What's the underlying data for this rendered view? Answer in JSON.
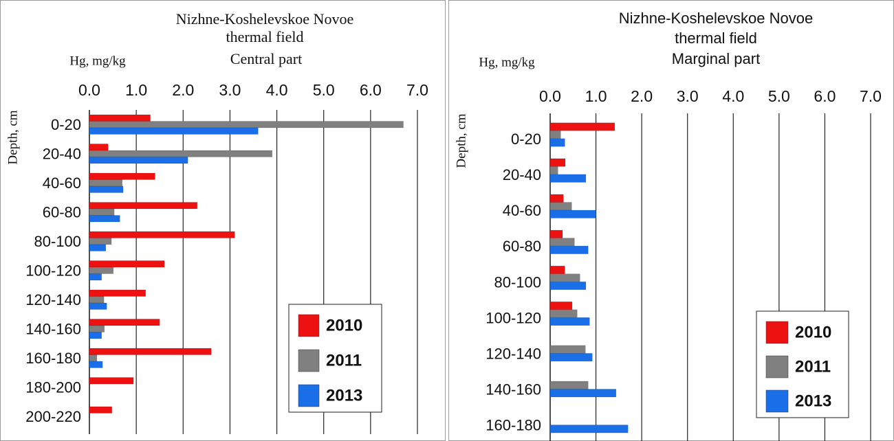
{
  "chart_data": [
    {
      "type": "bar",
      "orientation": "horizontal",
      "title": [
        "Nizhne-Koshelevskoe Novoe",
        "thermal field"
      ],
      "subtitle": "Central part",
      "x_label": "Hg, mg/kg",
      "y_label": "Depth, cm",
      "categories": [
        "0-20",
        "20-40",
        "40-60",
        "60-80",
        "80-100",
        "100-120",
        "120-140",
        "140-160",
        "160-180",
        "180-200",
        "200-220"
      ],
      "series": [
        {
          "name": "2010",
          "color": "#ee1111",
          "values": [
            1.3,
            0.4,
            1.4,
            2.3,
            3.1,
            1.6,
            1.2,
            1.5,
            2.6,
            0.94,
            0.48
          ]
        },
        {
          "name": "2011",
          "color": "#808080",
          "values": [
            6.7,
            3.9,
            0.7,
            0.53,
            0.47,
            0.51,
            0.31,
            0.32,
            0.16,
            null,
            null
          ]
        },
        {
          "name": "2013",
          "color": "#1a6fe8",
          "values": [
            3.6,
            2.1,
            0.72,
            0.65,
            0.35,
            0.26,
            0.37,
            0.26,
            0.28,
            null,
            null
          ]
        }
      ],
      "xlim": [
        0,
        7
      ],
      "xticks": [
        {
          "value": 0,
          "label": "0.0"
        },
        {
          "value": 1,
          "label": "1.0"
        },
        {
          "value": 2,
          "label": "2.0"
        },
        {
          "value": 3,
          "label": "3.0"
        },
        {
          "value": 4,
          "label": "4.0"
        },
        {
          "value": 5,
          "label": "5.0"
        },
        {
          "value": 6,
          "label": "6.0"
        },
        {
          "value": 7,
          "label": "7.0"
        }
      ],
      "grid": true,
      "legend": "lower right"
    },
    {
      "type": "bar",
      "orientation": "horizontal",
      "title": [
        "Nizhne-Koshelevskoe Novoe",
        "thermal field"
      ],
      "subtitle": "Marginal part",
      "x_label": "Hg, mg/kg",
      "y_label": "Depth, cm",
      "categories": [
        "0-20",
        "20-40",
        "40-60",
        "60-80",
        "80-100",
        "100-120",
        "120-140",
        "140-160",
        "160-180"
      ],
      "series": [
        {
          "name": "2010",
          "color": "#ee1111",
          "values": [
            1.41,
            0.33,
            0.29,
            0.27,
            0.32,
            0.48,
            null,
            null,
            null
          ]
        },
        {
          "name": "2011",
          "color": "#808080",
          "values": [
            0.23,
            0.17,
            0.47,
            0.53,
            0.65,
            0.59,
            0.77,
            0.83,
            null
          ]
        },
        {
          "name": "2013",
          "color": "#1a6fe8",
          "values": [
            0.32,
            0.78,
            1.0,
            0.83,
            0.78,
            0.86,
            0.92,
            1.44,
            1.7
          ]
        }
      ],
      "xlim": [
        0,
        7
      ],
      "xticks": [
        {
          "value": 0,
          "label": "0.0"
        },
        {
          "value": 1,
          "label": "1.0"
        },
        {
          "value": 2,
          "label": "2.0"
        },
        {
          "value": 3,
          "label": "3.0"
        },
        {
          "value": 4,
          "label": "4.0"
        },
        {
          "value": 5,
          "label": "5.0"
        },
        {
          "value": 6,
          "label": "6.0"
        },
        {
          "value": 7,
          "label": "7.0"
        }
      ],
      "grid": true,
      "legend": "lower right"
    }
  ]
}
